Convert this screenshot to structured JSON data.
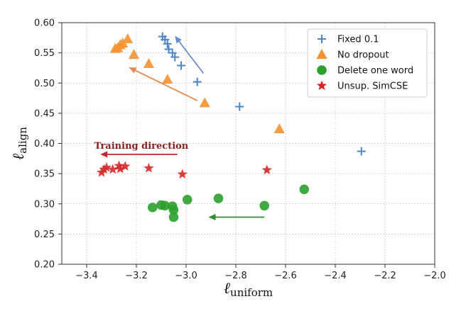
{
  "chart_data": {
    "type": "scatter",
    "xlabel": "ℓ",
    "xlabel_sub": "uniform",
    "ylabel": "ℓ",
    "ylabel_sub": "align",
    "xlim": [
      -3.5,
      -2.0
    ],
    "ylim": [
      0.2,
      0.6
    ],
    "xticks": [
      -3.4,
      -3.2,
      -3.0,
      -2.8,
      -2.6,
      -2.4,
      -2.2,
      -2.0
    ],
    "xtick_labels": [
      "−3.4",
      "−3.2",
      "−3.0",
      "−2.8",
      "−2.6",
      "−2.4",
      "−2.2",
      "−2.0"
    ],
    "yticks": [
      0.2,
      0.25,
      0.3,
      0.35,
      0.4,
      0.45,
      0.5,
      0.55,
      0.6
    ],
    "ytick_labels": [
      "0.20",
      "0.25",
      "0.30",
      "0.35",
      "0.40",
      "0.45",
      "0.50",
      "0.55",
      "0.60"
    ],
    "grid": true,
    "legend_position": "top-right",
    "series": [
      {
        "name": "Fixed 0.1",
        "marker": "plus",
        "color": "#4a86c6",
        "points": [
          [
            -3.095,
            0.577
          ],
          [
            -3.085,
            0.572
          ],
          [
            -3.075,
            0.565
          ],
          [
            -3.07,
            0.556
          ],
          [
            -3.055,
            0.55
          ],
          [
            -3.045,
            0.543
          ],
          [
            -3.02,
            0.529
          ],
          [
            -2.955,
            0.502
          ],
          [
            -2.785,
            0.461
          ],
          [
            -2.295,
            0.387
          ]
        ]
      },
      {
        "name": "No dropout",
        "marker": "triangle",
        "color": "#f5922f",
        "points": [
          [
            -3.285,
            0.557
          ],
          [
            -3.275,
            0.558
          ],
          [
            -3.265,
            0.563
          ],
          [
            -3.255,
            0.566
          ],
          [
            -3.235,
            0.573
          ],
          [
            -3.21,
            0.547
          ],
          [
            -3.15,
            0.532
          ],
          [
            -3.075,
            0.506
          ],
          [
            -2.925,
            0.467
          ],
          [
            -2.625,
            0.424
          ]
        ]
      },
      {
        "name": "Delete one word",
        "marker": "circle",
        "color": "#2ca02c",
        "points": [
          [
            -3.135,
            0.294
          ],
          [
            -3.1,
            0.298
          ],
          [
            -3.085,
            0.297
          ],
          [
            -3.055,
            0.296
          ],
          [
            -3.05,
            0.29
          ],
          [
            -3.05,
            0.278
          ],
          [
            -2.995,
            0.307
          ],
          [
            -2.87,
            0.309
          ],
          [
            -2.685,
            0.297
          ],
          [
            -2.525,
            0.324
          ]
        ]
      },
      {
        "name": "Unsup. SimCSE",
        "marker": "star",
        "color": "#d62728",
        "points": [
          [
            -3.34,
            0.352
          ],
          [
            -3.33,
            0.357
          ],
          [
            -3.32,
            0.36
          ],
          [
            -3.295,
            0.357
          ],
          [
            -3.27,
            0.363
          ],
          [
            -3.265,
            0.358
          ],
          [
            -3.245,
            0.362
          ],
          [
            -3.15,
            0.359
          ],
          [
            -3.015,
            0.349
          ],
          [
            -2.675,
            0.356
          ]
        ]
      }
    ],
    "arrows": [
      {
        "color": "#6a8bc9",
        "from": [
          -2.93,
          0.516
        ],
        "to": [
          -3.045,
          0.578
        ]
      },
      {
        "color": "#e58a4e",
        "from": [
          -2.955,
          0.471
        ],
        "to": [
          -3.23,
          0.526
        ]
      },
      {
        "color": "#2a8f2a",
        "from": [
          -2.685,
          0.278
        ],
        "to": [
          -2.91,
          0.278
        ]
      },
      {
        "color": "#c8262b",
        "from": [
          -3.035,
          0.382
        ],
        "to": [
          -3.345,
          0.382
        ]
      }
    ],
    "annotation": {
      "text": "Training direction",
      "anchor": [
        -3.18,
        0.397
      ],
      "color": "#8a1c1c"
    }
  }
}
